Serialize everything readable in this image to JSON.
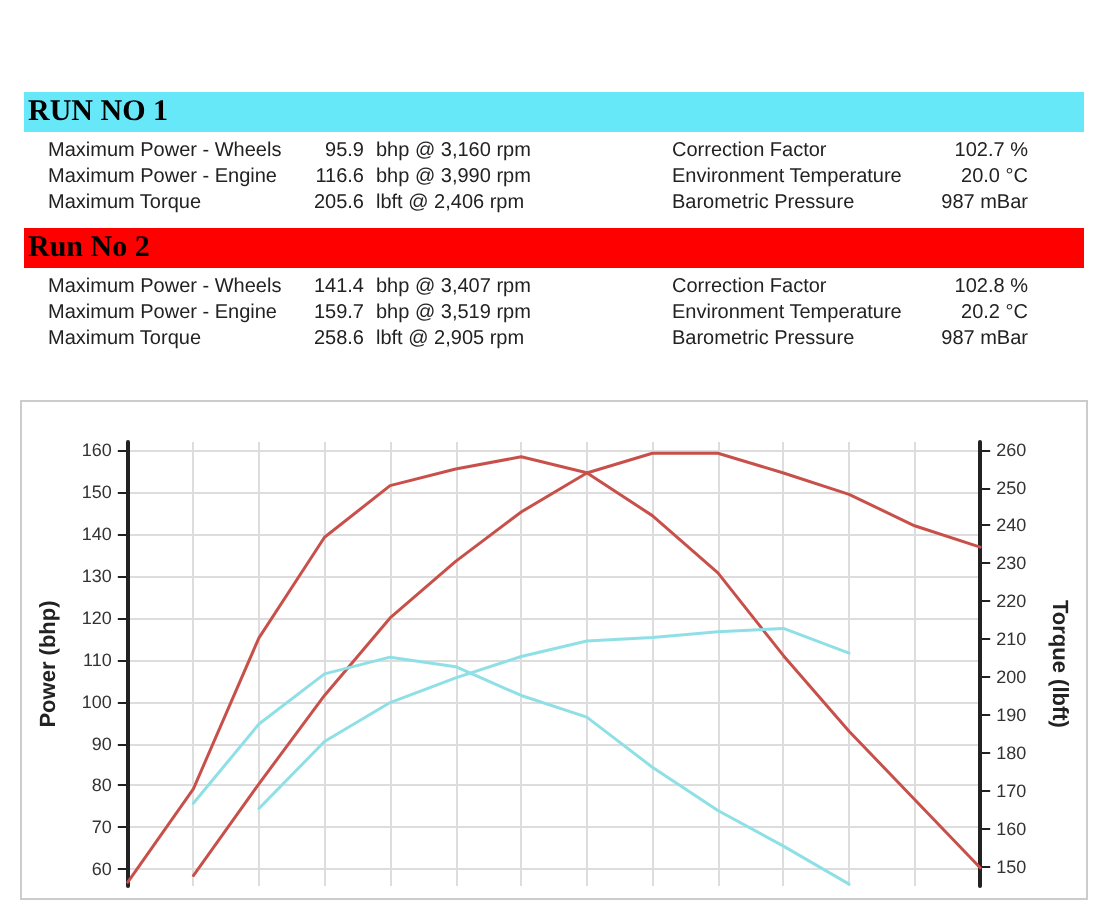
{
  "chart_data": [
    {
      "type": "other",
      "title": "RUN NO 1",
      "color": "#66e8f8",
      "annotations": [
        "Maximum Power - Wheels",
        "95.9",
        "bhp @ 3,160 rpm",
        "Correction Factor",
        "102.7 %",
        "Maximum Power - Engine",
        "116.6",
        "bhp @ 3,990 rpm",
        "Environment Temperature",
        "20.0 °C",
        "Maximum Torque",
        "205.6",
        "lbft @ 2,406 rpm",
        "Barometric Pressure",
        "987 mBar"
      ]
    },
    {
      "type": "other",
      "title": "Run No 2",
      "color": "#ff0000",
      "annotations": [
        "Maximum Power - Wheels",
        "141.4",
        "bhp @ 3,407 rpm",
        "Correction Factor",
        "102.8 %",
        "Maximum Power - Engine",
        "159.7",
        "bhp @ 3,519 rpm",
        "Environment Temperature",
        "20.2 °C",
        "Maximum Torque",
        "258.6",
        "lbft @ 2,905 rpm",
        "Barometric Pressure",
        "987 mBar"
      ]
    },
    {
      "type": "line",
      "ylabel": "Power (bhp)",
      "y2label": "Torque (lbft)",
      "categories": [
        null,
        null,
        null,
        null,
        null,
        null,
        null,
        null,
        null,
        null,
        null,
        null,
        null,
        null
      ],
      "ylim": [
        56,
        162
      ],
      "yticks": [
        60,
        70,
        80,
        90,
        100,
        110,
        120,
        130,
        140,
        150,
        160
      ],
      "y2lim": [
        145,
        262
      ],
      "y2ticks": [
        150,
        160,
        170,
        180,
        190,
        200,
        210,
        220,
        230,
        240,
        250,
        260
      ],
      "grid": true,
      "marker": "none",
      "line_style": "solid",
      "tick_labels": "y",
      "series": [
        {
          "color": "#c8504a",
          "axis": "y2",
          "values": [
            146,
            170.6,
            210.4,
            236.9,
            250.5,
            254.9,
            258.1,
            253.9,
            242.6,
            227.5,
            205.7,
            185.8,
            167.8,
            149.8
          ]
        },
        {
          "color": "#c8504a",
          "values": [
            null,
            58.5,
            80.4,
            101.5,
            120,
            133.5,
            145.3,
            154.6,
            159.3,
            159.3,
            154.6,
            149.5,
            142,
            136.9
          ]
        },
        {
          "color": "#8fe0e6",
          "axis": "y2",
          "values": [
            null,
            166.8,
            187.7,
            200.9,
            205.3,
            202.8,
            195.2,
            189.5,
            176.3,
            164.9,
            155.5,
            145.5,
            null,
            null
          ]
        },
        {
          "color": "#8fe0e6",
          "values": [
            null,
            null,
            74.5,
            90.5,
            99.8,
            105.7,
            110.8,
            114.5,
            115.3,
            116.7,
            117.5,
            111.6,
            null,
            null
          ]
        }
      ]
    }
  ]
}
